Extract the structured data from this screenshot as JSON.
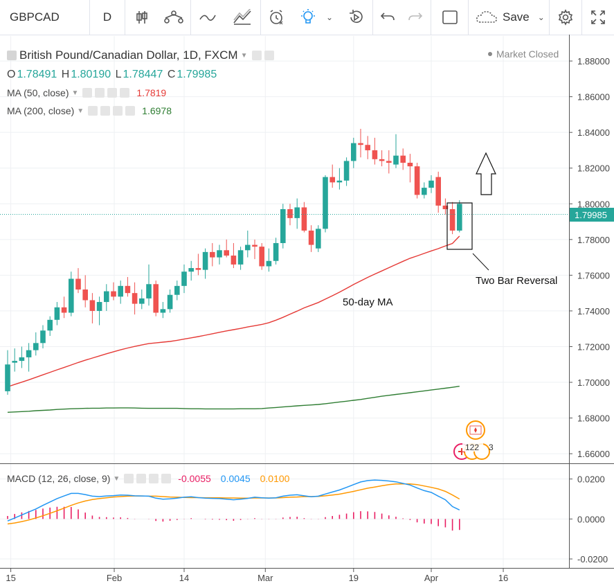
{
  "toolbar": {
    "symbol": "GBPCAD",
    "interval": "D",
    "save_label": "Save",
    "icons": [
      "candles-icon",
      "indicators-icon",
      "line-tool-icon",
      "fib-tool-icon",
      "alert-icon",
      "ideas-icon",
      "replay-icon",
      "undo-icon",
      "redo-icon",
      "fullscreen-box-icon",
      "cloud-icon",
      "settings-icon",
      "expand-icon"
    ]
  },
  "header": {
    "title": "British Pound/Canadian Dollar, 1D, FXCM",
    "status": "Market Closed",
    "ohlc": {
      "o_label": "O",
      "o": "1.78491",
      "h_label": "H",
      "h": "1.80190",
      "l_label": "L",
      "l": "1.78447",
      "c_label": "C",
      "c": "1.79985"
    },
    "ma50": {
      "label": "MA (50, close)",
      "value": "1.7819",
      "color": "#e53935"
    },
    "ma200": {
      "label": "MA (200, close)",
      "value": "1.6978",
      "color": "#2e7d32"
    }
  },
  "macd": {
    "label": "MACD (12, 26, close, 9)",
    "hist_value": "-0.0055",
    "macd_value": "0.0045",
    "signal_value": "0.0100",
    "colors": {
      "hist": "#e91e63",
      "macd": "#2196f3",
      "signal": "#ff9800"
    }
  },
  "annotations": {
    "two_bar_reversal": "Two Bar Reversal",
    "ma_label": "50-day MA",
    "event_count_a": "122",
    "event_count_b": "3"
  },
  "price_axis": {
    "ticks": [
      "1.88000",
      "1.86000",
      "1.84000",
      "1.82000",
      "1.80000",
      "1.78000",
      "1.76000",
      "1.74000",
      "1.72000",
      "1.70000",
      "1.68000",
      "1.66000"
    ],
    "current": "1.79985"
  },
  "macd_axis": {
    "ticks": [
      "0.0200",
      "0.0000",
      "-0.0200"
    ]
  },
  "time_axis": {
    "ticks": [
      "15",
      "Feb",
      "14",
      "Mar",
      "19",
      "Apr",
      "16"
    ]
  },
  "chart_data": {
    "type": "candlestick",
    "pair": "GBPCAD",
    "ylim": [
      1.655,
      1.894
    ],
    "candles": [
      {
        "o": 1.695,
        "h": 1.718,
        "l": 1.693,
        "c": 1.71
      },
      {
        "o": 1.711,
        "h": 1.719,
        "l": 1.706,
        "c": 1.712
      },
      {
        "o": 1.712,
        "h": 1.72,
        "l": 1.708,
        "c": 1.714
      },
      {
        "o": 1.714,
        "h": 1.722,
        "l": 1.706,
        "c": 1.718
      },
      {
        "o": 1.718,
        "h": 1.728,
        "l": 1.715,
        "c": 1.722
      },
      {
        "o": 1.722,
        "h": 1.732,
        "l": 1.719,
        "c": 1.729
      },
      {
        "o": 1.729,
        "h": 1.737,
        "l": 1.726,
        "c": 1.735
      },
      {
        "o": 1.735,
        "h": 1.745,
        "l": 1.732,
        "c": 1.742
      },
      {
        "o": 1.742,
        "h": 1.748,
        "l": 1.736,
        "c": 1.739
      },
      {
        "o": 1.739,
        "h": 1.762,
        "l": 1.737,
        "c": 1.758
      },
      {
        "o": 1.758,
        "h": 1.764,
        "l": 1.75,
        "c": 1.752
      },
      {
        "o": 1.752,
        "h": 1.76,
        "l": 1.742,
        "c": 1.746
      },
      {
        "o": 1.746,
        "h": 1.75,
        "l": 1.733,
        "c": 1.74
      },
      {
        "o": 1.74,
        "h": 1.748,
        "l": 1.732,
        "c": 1.745
      },
      {
        "o": 1.745,
        "h": 1.755,
        "l": 1.74,
        "c": 1.751
      },
      {
        "o": 1.751,
        "h": 1.756,
        "l": 1.746,
        "c": 1.748
      },
      {
        "o": 1.748,
        "h": 1.757,
        "l": 1.744,
        "c": 1.754
      },
      {
        "o": 1.754,
        "h": 1.759,
        "l": 1.748,
        "c": 1.75
      },
      {
        "o": 1.75,
        "h": 1.756,
        "l": 1.738,
        "c": 1.744
      },
      {
        "o": 1.744,
        "h": 1.752,
        "l": 1.741,
        "c": 1.747
      },
      {
        "o": 1.747,
        "h": 1.766,
        "l": 1.743,
        "c": 1.755
      },
      {
        "o": 1.755,
        "h": 1.757,
        "l": 1.737,
        "c": 1.739
      },
      {
        "o": 1.739,
        "h": 1.745,
        "l": 1.736,
        "c": 1.741
      },
      {
        "o": 1.741,
        "h": 1.752,
        "l": 1.739,
        "c": 1.749
      },
      {
        "o": 1.749,
        "h": 1.757,
        "l": 1.746,
        "c": 1.754
      },
      {
        "o": 1.754,
        "h": 1.766,
        "l": 1.75,
        "c": 1.762
      },
      {
        "o": 1.762,
        "h": 1.768,
        "l": 1.757,
        "c": 1.764
      },
      {
        "o": 1.764,
        "h": 1.772,
        "l": 1.76,
        "c": 1.763
      },
      {
        "o": 1.763,
        "h": 1.775,
        "l": 1.758,
        "c": 1.773
      },
      {
        "o": 1.773,
        "h": 1.778,
        "l": 1.765,
        "c": 1.77
      },
      {
        "o": 1.77,
        "h": 1.777,
        "l": 1.766,
        "c": 1.774
      },
      {
        "o": 1.774,
        "h": 1.78,
        "l": 1.77,
        "c": 1.771
      },
      {
        "o": 1.771,
        "h": 1.778,
        "l": 1.764,
        "c": 1.766
      },
      {
        "o": 1.766,
        "h": 1.776,
        "l": 1.763,
        "c": 1.774
      },
      {
        "o": 1.774,
        "h": 1.785,
        "l": 1.77,
        "c": 1.777
      },
      {
        "o": 1.777,
        "h": 1.78,
        "l": 1.769,
        "c": 1.776
      },
      {
        "o": 1.776,
        "h": 1.778,
        "l": 1.763,
        "c": 1.765
      },
      {
        "o": 1.765,
        "h": 1.775,
        "l": 1.762,
        "c": 1.768
      },
      {
        "o": 1.768,
        "h": 1.781,
        "l": 1.766,
        "c": 1.778
      },
      {
        "o": 1.778,
        "h": 1.8,
        "l": 1.775,
        "c": 1.797
      },
      {
        "o": 1.797,
        "h": 1.8,
        "l": 1.788,
        "c": 1.792
      },
      {
        "o": 1.792,
        "h": 1.803,
        "l": 1.786,
        "c": 1.798
      },
      {
        "o": 1.798,
        "h": 1.801,
        "l": 1.784,
        "c": 1.785
      },
      {
        "o": 1.785,
        "h": 1.788,
        "l": 1.773,
        "c": 1.777
      },
      {
        "o": 1.775,
        "h": 1.788,
        "l": 1.773,
        "c": 1.786
      },
      {
        "o": 1.786,
        "h": 1.816,
        "l": 1.784,
        "c": 1.815
      },
      {
        "o": 1.815,
        "h": 1.822,
        "l": 1.809,
        "c": 1.812
      },
      {
        "o": 1.812,
        "h": 1.82,
        "l": 1.808,
        "c": 1.813
      },
      {
        "o": 1.813,
        "h": 1.826,
        "l": 1.81,
        "c": 1.824
      },
      {
        "o": 1.824,
        "h": 1.837,
        "l": 1.82,
        "c": 1.834
      },
      {
        "o": 1.834,
        "h": 1.842,
        "l": 1.826,
        "c": 1.833
      },
      {
        "o": 1.833,
        "h": 1.838,
        "l": 1.825,
        "c": 1.83
      },
      {
        "o": 1.83,
        "h": 1.837,
        "l": 1.822,
        "c": 1.825
      },
      {
        "o": 1.825,
        "h": 1.83,
        "l": 1.821,
        "c": 1.824
      },
      {
        "o": 1.824,
        "h": 1.83,
        "l": 1.817,
        "c": 1.823
      },
      {
        "o": 1.822,
        "h": 1.839,
        "l": 1.82,
        "c": 1.827
      },
      {
        "o": 1.827,
        "h": 1.831,
        "l": 1.819,
        "c": 1.823
      },
      {
        "o": 1.823,
        "h": 1.828,
        "l": 1.812,
        "c": 1.821
      },
      {
        "o": 1.821,
        "h": 1.823,
        "l": 1.803,
        "c": 1.805
      },
      {
        "o": 1.805,
        "h": 1.812,
        "l": 1.803,
        "c": 1.809
      },
      {
        "o": 1.809,
        "h": 1.816,
        "l": 1.806,
        "c": 1.813
      },
      {
        "o": 1.815,
        "h": 1.818,
        "l": 1.795,
        "c": 1.799
      },
      {
        "o": 1.799,
        "h": 1.803,
        "l": 1.794,
        "c": 1.797
      },
      {
        "o": 1.797,
        "h": 1.801,
        "l": 1.783,
        "c": 1.785
      },
      {
        "o": 1.785,
        "h": 1.802,
        "l": 1.784,
        "c": 1.8
      }
    ],
    "ma50": [
      1.6975,
      1.6988,
      1.7001,
      1.7014,
      1.7028,
      1.7042,
      1.7056,
      1.707,
      1.7083,
      1.7097,
      1.7111,
      1.7124,
      1.7136,
      1.7148,
      1.716,
      1.7171,
      1.7182,
      1.7192,
      1.7201,
      1.7209,
      1.7217,
      1.7221,
      1.7225,
      1.7229,
      1.7235,
      1.7242,
      1.7249,
      1.7256,
      1.7264,
      1.7272,
      1.728,
      1.7288,
      1.7295,
      1.7302,
      1.731,
      1.7317,
      1.7324,
      1.7334,
      1.7348,
      1.7364,
      1.7382,
      1.7399,
      1.7417,
      1.7432,
      1.7447,
      1.7466,
      1.7485,
      1.7505,
      1.7526,
      1.7548,
      1.7568,
      1.7588,
      1.7606,
      1.7624,
      1.7642,
      1.766,
      1.7678,
      1.7695,
      1.7708,
      1.7722,
      1.7736,
      1.7749,
      1.7764,
      1.7778,
      1.7819
    ],
    "ma200": [
      1.6832,
      1.6834,
      1.6836,
      1.6838,
      1.6841,
      1.6843,
      1.6845,
      1.6848,
      1.685,
      1.6852,
      1.6853,
      1.6854,
      1.6855,
      1.6855,
      1.6856,
      1.6856,
      1.6857,
      1.6857,
      1.6856,
      1.6855,
      1.6854,
      1.6854,
      1.6854,
      1.6854,
      1.6854,
      1.6853,
      1.6852,
      1.6852,
      1.6851,
      1.6851,
      1.6851,
      1.6851,
      1.6851,
      1.6852,
      1.6852,
      1.6852,
      1.6853,
      1.6856,
      1.6859,
      1.6862,
      1.6865,
      1.6868,
      1.6871,
      1.6873,
      1.6876,
      1.688,
      1.6885,
      1.689,
      1.6894,
      1.6899,
      1.6904,
      1.691,
      1.6916,
      1.6922,
      1.6927,
      1.6932,
      1.6937,
      1.6942,
      1.6947,
      1.6952,
      1.6957,
      1.6962,
      1.6967,
      1.6972,
      1.6978
    ],
    "macd_line": [
      -0.001,
      0.0005,
      0.002,
      0.0035,
      0.005,
      0.0068,
      0.0085,
      0.0102,
      0.0115,
      0.0128,
      0.0128,
      0.0122,
      0.0114,
      0.0112,
      0.0115,
      0.0117,
      0.012,
      0.0119,
      0.0116,
      0.0115,
      0.0114,
      0.0104,
      0.0099,
      0.0101,
      0.0104,
      0.0109,
      0.0111,
      0.0107,
      0.0104,
      0.0103,
      0.0102,
      0.0099,
      0.0096,
      0.0099,
      0.0103,
      0.0109,
      0.0106,
      0.0104,
      0.0106,
      0.0114,
      0.0119,
      0.0121,
      0.0116,
      0.0111,
      0.0114,
      0.0125,
      0.0135,
      0.0145,
      0.0158,
      0.0172,
      0.0185,
      0.0192,
      0.0195,
      0.0193,
      0.019,
      0.0186,
      0.0178,
      0.017,
      0.0155,
      0.0142,
      0.0133,
      0.0114,
      0.0096,
      0.0062,
      0.0045
    ],
    "signal_line": [
      -0.0025,
      -0.002,
      -0.0013,
      -0.0005,
      0.0005,
      0.0016,
      0.0028,
      0.0041,
      0.0054,
      0.0068,
      0.008,
      0.009,
      0.0097,
      0.0102,
      0.0106,
      0.011,
      0.0112,
      0.0114,
      0.0115,
      0.0115,
      0.0114,
      0.0114,
      0.0112,
      0.011,
      0.0109,
      0.0108,
      0.0107,
      0.0107,
      0.0106,
      0.0106,
      0.0106,
      0.0105,
      0.0105,
      0.0104,
      0.0104,
      0.0105,
      0.0105,
      0.0105,
      0.0105,
      0.0107,
      0.0109,
      0.011,
      0.0112,
      0.0112,
      0.0113,
      0.0116,
      0.012,
      0.0124,
      0.0131,
      0.0138,
      0.0146,
      0.0154,
      0.016,
      0.0166,
      0.0172,
      0.0175,
      0.0175,
      0.0175,
      0.0172,
      0.0165,
      0.0158,
      0.015,
      0.0138,
      0.012,
      0.01
    ],
    "histogram": [
      0.0015,
      0.0025,
      0.0033,
      0.004,
      0.0045,
      0.0052,
      0.0057,
      0.0061,
      0.0061,
      0.006,
      0.0048,
      0.0032,
      0.0017,
      0.001,
      0.0009,
      0.0007,
      0.0008,
      0.0005,
      0.0001,
      0.0,
      -0.0001,
      -0.001,
      -0.0013,
      -0.0009,
      -0.0005,
      0.0001,
      0.0004,
      0.0,
      -0.0002,
      -0.0003,
      -0.0004,
      -0.0006,
      -0.0009,
      -0.0005,
      -0.0001,
      0.0004,
      0.0001,
      -0.0001,
      0.0001,
      0.0007,
      0.001,
      0.0011,
      0.0004,
      -0.0001,
      0.0001,
      0.0009,
      0.0015,
      0.0021,
      0.0027,
      0.0034,
      0.0039,
      0.0038,
      0.0035,
      0.0027,
      0.0018,
      0.0011,
      0.0003,
      -0.0005,
      -0.0017,
      -0.0023,
      -0.0025,
      -0.0036,
      -0.0042,
      -0.0058,
      -0.0055
    ],
    "macd_ylim": [
      -0.0238,
      0.0268
    ]
  }
}
